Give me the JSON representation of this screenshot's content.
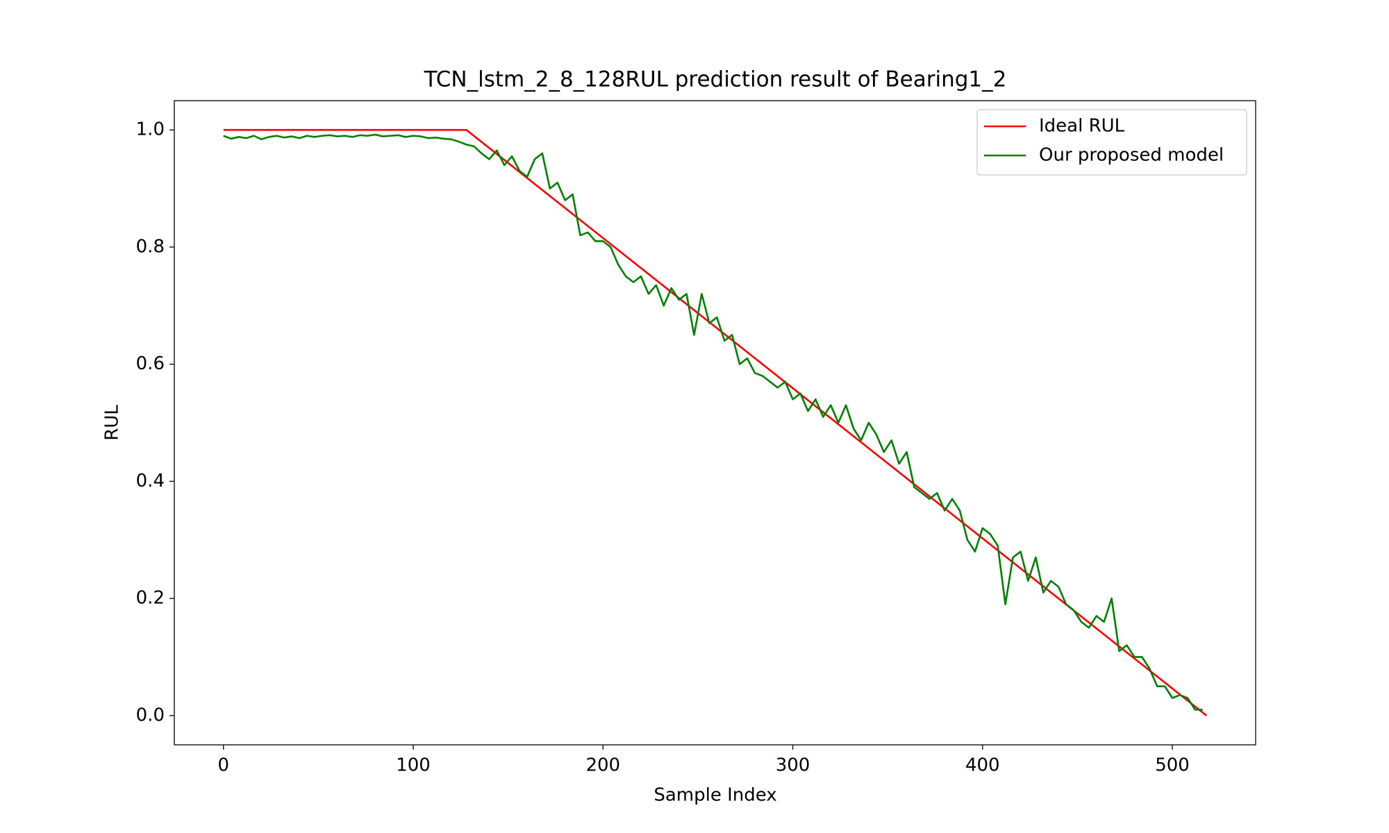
{
  "chart_data": {
    "type": "line",
    "title": "TCN_lstm_2_8_128RUL prediction result of Bearing1_2",
    "xlabel": "Sample Index",
    "ylabel": "RUL",
    "xlim": [
      -25.9,
      543.9
    ],
    "ylim": [
      -0.05,
      1.05
    ],
    "xticks": [
      0,
      100,
      200,
      300,
      400,
      500
    ],
    "yticks": [
      {
        "value": 0,
        "label": "0.0"
      },
      0.2,
      0.4,
      0.6,
      0.8,
      {
        "value": 1,
        "label": "1.0"
      }
    ],
    "grid": false,
    "legend": "upper right",
    "series": [
      {
        "name": "Ideal RUL",
        "color": "#ff0000",
        "x": [
          0,
          128,
          518
        ],
        "values": [
          1,
          1,
          0
        ]
      },
      {
        "name": "Our proposed model",
        "color": "#008000",
        "x": [
          0,
          4,
          8,
          12,
          16,
          20,
          24,
          28,
          32,
          36,
          40,
          44,
          48,
          52,
          56,
          60,
          64,
          68,
          72,
          76,
          80,
          84,
          88,
          92,
          96,
          100,
          104,
          108,
          112,
          116,
          120,
          124,
          128,
          132,
          136,
          140,
          144,
          148,
          152,
          156,
          160,
          164,
          168,
          172,
          176,
          180,
          184,
          188,
          192,
          196,
          200,
          204,
          208,
          212,
          216,
          220,
          224,
          228,
          232,
          236,
          240,
          244,
          248,
          252,
          256,
          260,
          264,
          268,
          272,
          276,
          280,
          284,
          288,
          292,
          296,
          300,
          304,
          308,
          312,
          316,
          320,
          324,
          328,
          332,
          336,
          340,
          344,
          348,
          352,
          356,
          360,
          364,
          368,
          372,
          376,
          380,
          384,
          388,
          392,
          396,
          400,
          404,
          408,
          412,
          416,
          420,
          424,
          428,
          432,
          436,
          440,
          444,
          448,
          452,
          456,
          460,
          464,
          468,
          472,
          476,
          480,
          484,
          488,
          492,
          496,
          500,
          504,
          508,
          512,
          516
        ],
        "values": [
          0.99,
          0.985,
          0.988,
          0.986,
          0.99,
          0.984,
          0.988,
          0.99,
          0.987,
          0.989,
          0.986,
          0.99,
          0.988,
          0.99,
          0.991,
          0.989,
          0.99,
          0.988,
          0.991,
          0.99,
          0.992,
          0.989,
          0.99,
          0.991,
          0.988,
          0.99,
          0.989,
          0.986,
          0.987,
          0.985,
          0.984,
          0.98,
          0.975,
          0.972,
          0.96,
          0.95,
          0.965,
          0.94,
          0.955,
          0.93,
          0.92,
          0.95,
          0.96,
          0.9,
          0.91,
          0.88,
          0.89,
          0.82,
          0.825,
          0.81,
          0.81,
          0.8,
          0.77,
          0.75,
          0.74,
          0.75,
          0.72,
          0.735,
          0.7,
          0.73,
          0.71,
          0.72,
          0.65,
          0.72,
          0.67,
          0.68,
          0.64,
          0.65,
          0.6,
          0.61,
          0.585,
          0.58,
          0.57,
          0.56,
          0.57,
          0.54,
          0.55,
          0.52,
          0.54,
          0.51,
          0.53,
          0.5,
          0.53,
          0.49,
          0.47,
          0.5,
          0.48,
          0.45,
          0.47,
          0.43,
          0.45,
          0.39,
          0.38,
          0.37,
          0.38,
          0.35,
          0.37,
          0.35,
          0.3,
          0.28,
          0.32,
          0.31,
          0.29,
          0.19,
          0.27,
          0.28,
          0.23,
          0.27,
          0.21,
          0.23,
          0.22,
          0.19,
          0.18,
          0.16,
          0.15,
          0.17,
          0.16,
          0.2,
          0.11,
          0.12,
          0.1,
          0.1,
          0.08,
          0.05,
          0.05,
          0.03,
          0.035,
          0.03,
          0.01,
          0.01
        ]
      }
    ]
  }
}
